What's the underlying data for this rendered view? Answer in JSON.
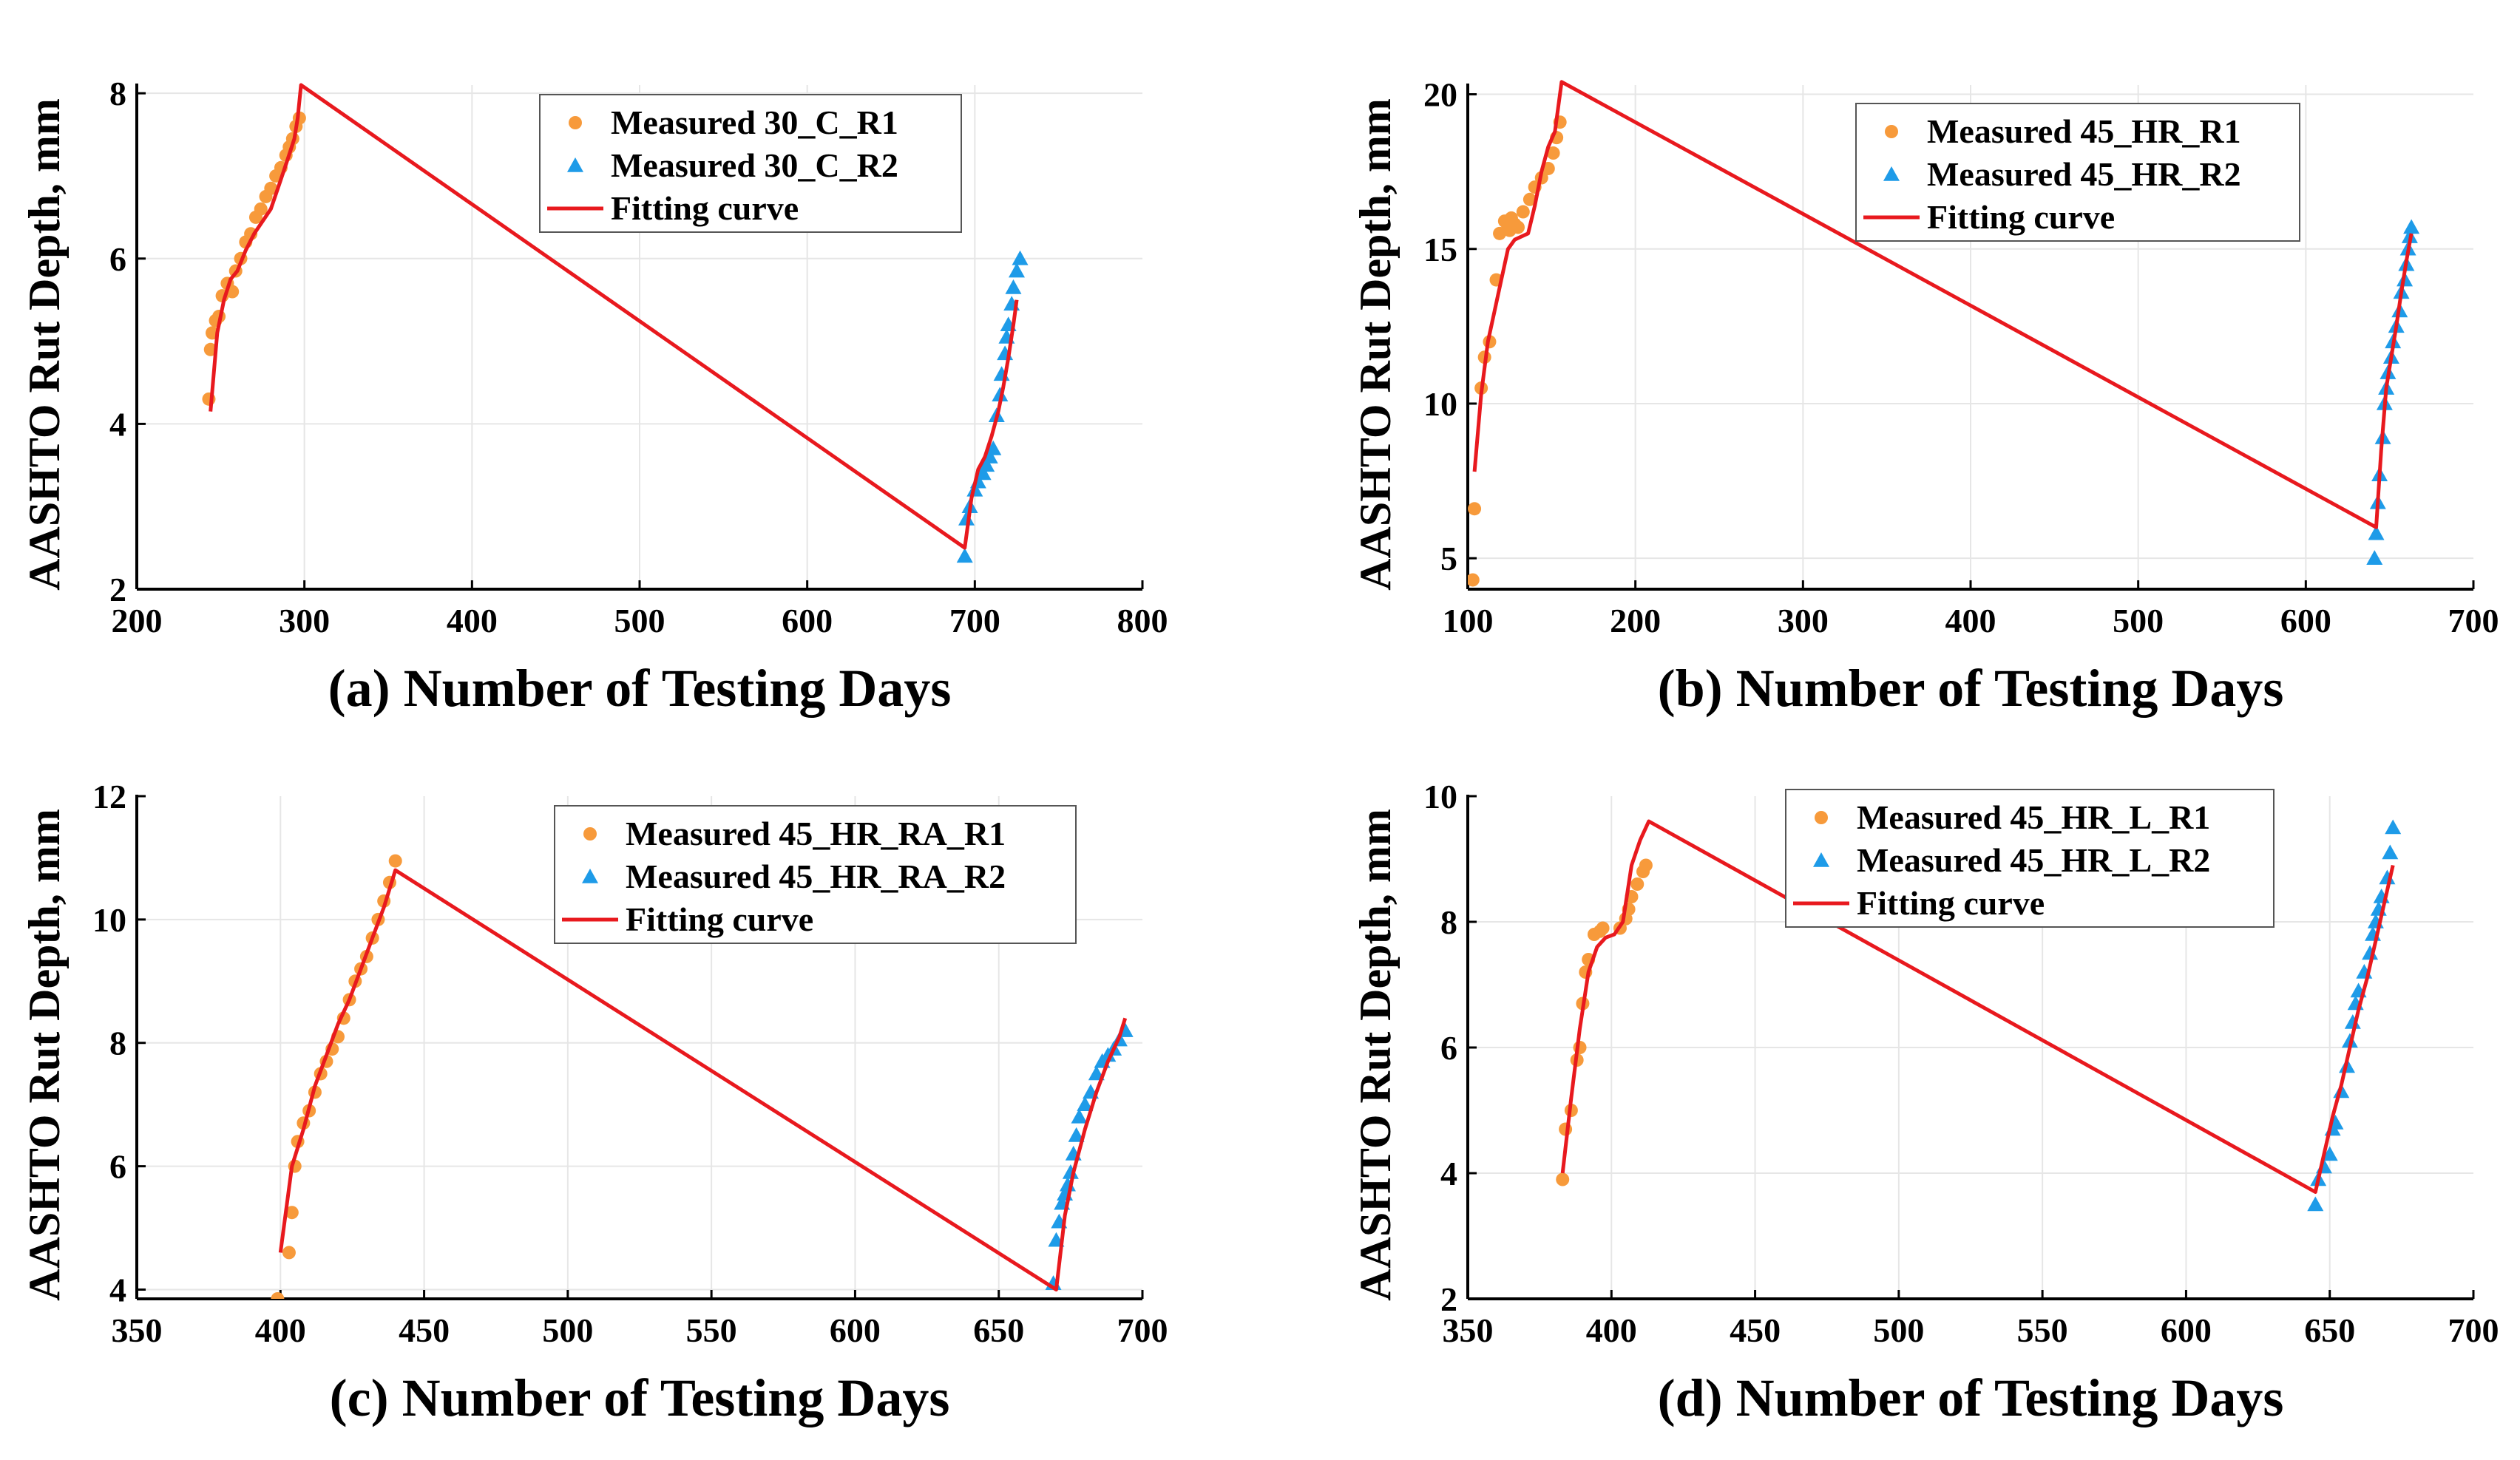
{
  "colors": {
    "series1": "#F79A3B",
    "series2": "#1E9BE8",
    "fit": "#E8191E",
    "grid": "#E6E6E6",
    "axis": "#000000"
  },
  "chart_data": [
    {
      "id": "a",
      "type": "scatter",
      "xlabel": "(a) Number of Testing Days",
      "ylabel": "AASHTO Rut Depth, mm",
      "xlim": [
        200,
        800
      ],
      "ylim": [
        2,
        8.1
      ],
      "xticks": [
        200,
        300,
        400,
        500,
        600,
        700,
        800
      ],
      "yticks": [
        2,
        4,
        6,
        8
      ],
      "grid": true,
      "legend_position": "top-right",
      "series": [
        {
          "name": "Measured 30_C_R1",
          "marker": "circle",
          "x": [
            243,
            244,
            245,
            247,
            249,
            251,
            254,
            257,
            259,
            262,
            265,
            268,
            271,
            274,
            277,
            280,
            283,
            286,
            289,
            291,
            293,
            295,
            297
          ],
          "y": [
            4.3,
            4.9,
            5.1,
            5.25,
            5.3,
            5.55,
            5.7,
            5.6,
            5.85,
            6.0,
            6.2,
            6.3,
            6.5,
            6.6,
            6.75,
            6.85,
            7.0,
            7.1,
            7.25,
            7.35,
            7.45,
            7.6,
            7.7
          ]
        },
        {
          "name": "Measured 30_C_R2",
          "marker": "triangle",
          "x": [
            694,
            695,
            697,
            700,
            702,
            705,
            707,
            709,
            711,
            713,
            715,
            716,
            718,
            719,
            720,
            722,
            723,
            725,
            727
          ],
          "y": [
            2.4,
            2.85,
            3.0,
            3.2,
            3.3,
            3.4,
            3.5,
            3.6,
            3.7,
            4.1,
            4.35,
            4.6,
            4.85,
            5.05,
            5.2,
            5.45,
            5.65,
            5.85,
            6.0
          ]
        },
        {
          "name": "Fitting curve",
          "type": "line",
          "x": [
            244,
            248,
            252,
            256,
            260,
            265,
            270,
            275,
            280,
            285,
            290,
            294,
            296,
            298,
            694,
            698,
            702,
            706,
            710,
            714,
            717,
            720,
            723,
            725
          ],
          "y": [
            4.15,
            5.1,
            5.5,
            5.75,
            5.85,
            6.1,
            6.3,
            6.45,
            6.6,
            6.9,
            7.2,
            7.45,
            7.7,
            8.1,
            2.5,
            3.1,
            3.45,
            3.6,
            3.85,
            4.15,
            4.45,
            4.8,
            5.2,
            5.5
          ]
        }
      ]
    },
    {
      "id": "b",
      "type": "scatter",
      "xlabel": "(b) Number of Testing Days",
      "ylabel": "AASHTO Rut Depth, mm",
      "xlim": [
        100,
        700
      ],
      "ylim": [
        4,
        20.3
      ],
      "xticks": [
        100,
        200,
        300,
        400,
        500,
        600,
        700
      ],
      "yticks": [
        5,
        10,
        15,
        20
      ],
      "grid": true,
      "legend_position": "top-right",
      "series": [
        {
          "name": "Measured 45_HR_R1",
          "marker": "circle",
          "x": [
            103,
            104,
            108,
            110,
            113,
            117,
            119,
            122,
            124,
            125,
            126,
            128,
            130,
            133,
            137,
            140,
            144,
            148,
            151,
            153,
            155
          ],
          "y": [
            4.3,
            6.6,
            10.5,
            11.5,
            12.0,
            14.0,
            15.5,
            15.9,
            15.7,
            15.6,
            16.0,
            15.8,
            15.7,
            16.2,
            16.6,
            17.0,
            17.3,
            17.6,
            18.1,
            18.6,
            19.1
          ]
        },
        {
          "name": "Measured 45_HR_R2",
          "marker": "triangle",
          "x": [
            641,
            642,
            643,
            644,
            646,
            647,
            648,
            649,
            651,
            652,
            654,
            656,
            657,
            659,
            660,
            661,
            662,
            663
          ],
          "y": [
            5.0,
            5.8,
            6.8,
            7.7,
            8.9,
            10.0,
            10.5,
            11.0,
            11.5,
            12.0,
            12.5,
            13.0,
            13.6,
            14.0,
            14.5,
            15.0,
            15.4,
            15.7
          ]
        },
        {
          "name": "Fitting curve",
          "type": "line",
          "x": [
            104,
            108,
            112,
            116,
            120,
            124,
            128,
            132,
            136,
            140,
            144,
            148,
            152,
            156,
            642,
            645,
            648,
            651,
            654,
            657,
            660,
            663
          ],
          "y": [
            7.8,
            10.3,
            12.0,
            13.0,
            14.0,
            15.0,
            15.3,
            15.4,
            15.5,
            16.4,
            17.5,
            18.3,
            18.8,
            20.4,
            6.0,
            8.5,
            10.5,
            11.5,
            12.5,
            13.6,
            14.6,
            15.5
          ]
        }
      ]
    },
    {
      "id": "c",
      "type": "scatter",
      "xlabel": "(c) Number of Testing Days",
      "ylabel": "AASHTO Rut Depth, mm",
      "xlim": [
        350,
        700
      ],
      "ylim": [
        3.85,
        12
      ],
      "xticks": [
        350,
        400,
        450,
        500,
        550,
        600,
        650,
        700
      ],
      "yticks": [
        4,
        6,
        8,
        10,
        12
      ],
      "grid": true,
      "legend_position": "top-right",
      "series": [
        {
          "name": "Measured 45_HR_RA_R1",
          "marker": "circle",
          "x": [
            399,
            403,
            404,
            405,
            406,
            408,
            410,
            412,
            414,
            416,
            418,
            420,
            422,
            424,
            426,
            428,
            430,
            432,
            434,
            436,
            438,
            440
          ],
          "y": [
            3.85,
            4.6,
            5.25,
            6.0,
            6.4,
            6.7,
            6.9,
            7.2,
            7.5,
            7.7,
            7.9,
            8.1,
            8.4,
            8.7,
            9.0,
            9.2,
            9.4,
            9.7,
            10.0,
            10.3,
            10.6,
            10.95
          ]
        },
        {
          "name": "Measured 45_HR_RA_R2",
          "marker": "triangle",
          "x": [
            669,
            670,
            671,
            672,
            673,
            674,
            675,
            676,
            677,
            678,
            680,
            682,
            684,
            686,
            688,
            690,
            692,
            694
          ],
          "y": [
            4.1,
            4.8,
            5.1,
            5.4,
            5.55,
            5.7,
            5.9,
            6.2,
            6.5,
            6.8,
            7.0,
            7.2,
            7.5,
            7.7,
            7.8,
            7.9,
            8.05,
            8.2
          ]
        },
        {
          "name": "Fitting curve",
          "type": "line",
          "x": [
            400,
            404,
            408,
            412,
            416,
            420,
            424,
            428,
            432,
            436,
            440,
            670,
            673,
            676,
            680,
            684,
            688,
            692,
            694
          ],
          "y": [
            4.6,
            6.0,
            6.6,
            7.3,
            7.8,
            8.3,
            8.7,
            9.2,
            9.7,
            10.2,
            10.8,
            4.0,
            5.2,
            5.9,
            6.6,
            7.2,
            7.7,
            8.1,
            8.4
          ]
        }
      ]
    },
    {
      "id": "d",
      "type": "scatter",
      "xlabel": "(d) Number of Testing Days",
      "ylabel": "AASHTO Rut Depth, mm",
      "xlim": [
        350,
        700
      ],
      "ylim": [
        2,
        10
      ],
      "xticks": [
        350,
        400,
        450,
        500,
        550,
        600,
        650,
        700
      ],
      "yticks": [
        2,
        4,
        6,
        8,
        10
      ],
      "grid": true,
      "legend_position": "top-center",
      "series": [
        {
          "name": "Measured 45_HR_L_R1",
          "marker": "circle",
          "x": [
            383,
            384,
            386,
            388,
            389,
            390,
            391,
            392,
            394,
            396,
            397,
            403,
            405,
            406,
            407,
            409,
            411,
            412
          ],
          "y": [
            3.9,
            4.7,
            5.0,
            5.8,
            6.0,
            6.7,
            7.2,
            7.4,
            7.8,
            7.85,
            7.9,
            7.9,
            8.05,
            8.2,
            8.4,
            8.6,
            8.8,
            8.9
          ]
        },
        {
          "name": "Measured 45_HR_L_R2",
          "marker": "triangle",
          "x": [
            645,
            646,
            648,
            650,
            651,
            652,
            654,
            656,
            657,
            658,
            659,
            660,
            662,
            664,
            665,
            666,
            667,
            668,
            670,
            671,
            672
          ],
          "y": [
            3.5,
            3.9,
            4.1,
            4.3,
            4.7,
            4.8,
            5.3,
            5.7,
            6.1,
            6.4,
            6.7,
            6.9,
            7.2,
            7.5,
            7.8,
            8.0,
            8.2,
            8.4,
            8.7,
            9.1,
            9.5
          ]
        },
        {
          "name": "Fitting curve",
          "type": "line",
          "x": [
            383,
            386,
            389,
            392,
            395,
            398,
            401,
            404,
            407,
            410,
            413,
            645,
            648,
            651,
            654,
            657,
            660,
            663,
            666,
            669,
            672
          ],
          "y": [
            4.0,
            5.2,
            6.3,
            7.2,
            7.6,
            7.75,
            7.8,
            8.0,
            8.9,
            9.3,
            9.6,
            3.7,
            4.3,
            4.9,
            5.4,
            6.0,
            6.6,
            7.1,
            7.7,
            8.3,
            8.9
          ]
        }
      ]
    }
  ]
}
